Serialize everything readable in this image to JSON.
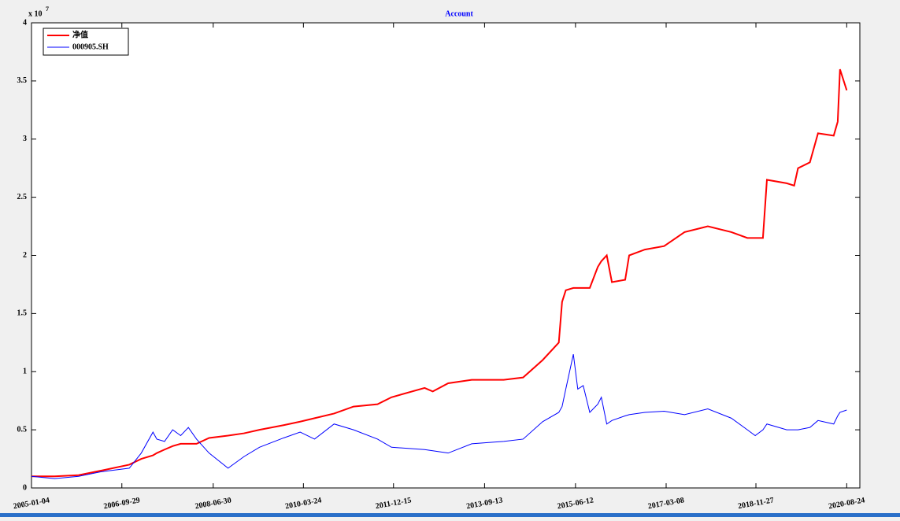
{
  "chart_data": {
    "type": "line",
    "title": "Account",
    "y_multiplier": "x 10",
    "y_exponent": "7",
    "x": [
      "2005-01-04",
      "2005-06-15",
      "2005-11-30",
      "2006-05-10",
      "2006-11-20",
      "2007-02-12",
      "2007-05-05",
      "2007-06-01",
      "2007-07-25",
      "2007-09-20",
      "2007-11-15",
      "2008-01-08",
      "2008-03-05",
      "2008-06-01",
      "2008-10-12",
      "2009-02-01",
      "2009-05-20",
      "2009-11-05",
      "2010-03-01",
      "2010-06-10",
      "2010-10-25",
      "2011-03-10",
      "2011-08-25",
      "2011-12-01",
      "2012-07-20",
      "2012-09-15",
      "2013-01-01",
      "2013-06-15",
      "2014-01-25",
      "2014-06-10",
      "2014-10-25",
      "2015-02-15",
      "2015-03-10",
      "2015-04-05",
      "2015-05-28",
      "2015-06-28",
      "2015-08-05",
      "2015-09-20",
      "2015-11-15",
      "2015-12-10",
      "2016-01-17",
      "2016-02-22",
      "2016-05-25",
      "2016-06-22",
      "2016-10-10",
      "2017-02-22",
      "2017-07-15",
      "2017-12-25",
      "2018-06-08",
      "2018-09-28",
      "2018-11-22",
      "2019-01-15",
      "2019-02-12",
      "2019-07-01",
      "2019-08-22",
      "2019-09-18",
      "2019-12-10",
      "2020-02-05",
      "2020-05-25",
      "2020-06-22",
      "2020-07-08",
      "2020-08-24"
    ],
    "series": [
      {
        "name": "净值",
        "color": "#ff0000",
        "width": 2,
        "values": [
          0.1,
          0.1,
          0.11,
          0.15,
          0.2,
          0.25,
          0.28,
          0.3,
          0.33,
          0.36,
          0.38,
          0.38,
          0.38,
          0.43,
          0.45,
          0.47,
          0.5,
          0.54,
          0.57,
          0.6,
          0.64,
          0.7,
          0.72,
          0.78,
          0.86,
          0.83,
          0.9,
          0.93,
          0.93,
          0.95,
          1.1,
          1.25,
          1.6,
          1.7,
          1.72,
          1.72,
          1.72,
          1.72,
          1.9,
          1.95,
          2.0,
          1.77,
          1.79,
          2.0,
          2.05,
          2.08,
          2.2,
          2.25,
          2.2,
          2.15,
          2.15,
          2.15,
          2.65,
          2.62,
          2.6,
          2.75,
          2.8,
          3.05,
          3.03,
          3.15,
          3.6,
          3.42
        ]
      },
      {
        "name": "000905.SH",
        "color": "#0000ff",
        "width": 1,
        "values": [
          0.1,
          0.08,
          0.1,
          0.14,
          0.17,
          0.3,
          0.48,
          0.42,
          0.4,
          0.5,
          0.45,
          0.52,
          0.42,
          0.3,
          0.17,
          0.27,
          0.35,
          0.43,
          0.48,
          0.42,
          0.55,
          0.5,
          0.42,
          0.35,
          0.33,
          0.32,
          0.3,
          0.38,
          0.4,
          0.42,
          0.57,
          0.65,
          0.7,
          0.85,
          1.15,
          0.85,
          0.88,
          0.65,
          0.72,
          0.78,
          0.55,
          0.58,
          0.62,
          0.63,
          0.65,
          0.66,
          0.63,
          0.68,
          0.6,
          0.5,
          0.45,
          0.5,
          0.55,
          0.5,
          0.5,
          0.5,
          0.52,
          0.58,
          0.55,
          0.62,
          0.65,
          0.67
        ]
      }
    ],
    "xlim": [
      "2005-01-04",
      "2020-11-24"
    ],
    "xticks": [
      "2005-01-04",
      "2006-09-29",
      "2008-06-30",
      "2010-03-24",
      "2011-12-15",
      "2013-09-13",
      "2015-06-12",
      "2017-03-08",
      "2018-11-27",
      "2020-08-24"
    ],
    "ylim": [
      0,
      4
    ],
    "yticks": [
      0,
      0.5,
      1,
      1.5,
      2,
      2.5,
      3,
      3.5,
      4
    ],
    "grid": false,
    "legend": "upper left"
  }
}
